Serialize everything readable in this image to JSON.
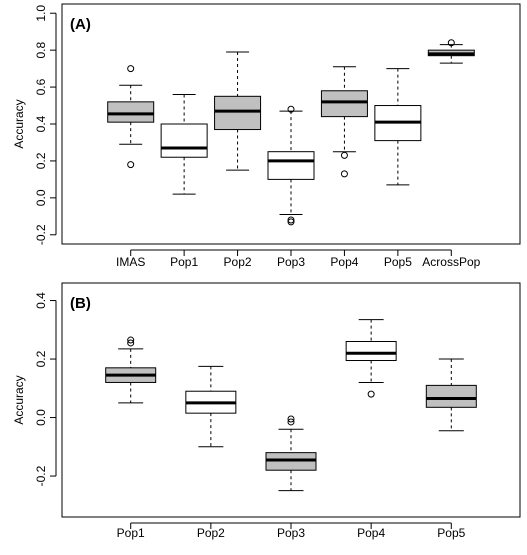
{
  "chart_data": [
    {
      "type": "boxplot",
      "panel_label": "(A)",
      "ylabel": "Accuracy",
      "ylim": [
        -0.25,
        1.05
      ],
      "yticks": [
        -0.2,
        0.0,
        0.2,
        0.4,
        0.6,
        0.8,
        1.0
      ],
      "ytick_labels": [
        "-0.2",
        "0.0",
        "0.2",
        "0.4",
        "0.6",
        "0.8",
        "1.0"
      ],
      "categories": [
        "IMAS",
        "Pop1",
        "Pop2",
        "Pop3",
        "Pop4",
        "Pop5",
        "AcrossPop"
      ],
      "boxes": [
        {
          "label": "IMAS",
          "whisker_low": 0.29,
          "q1": 0.41,
          "median": 0.455,
          "q3": 0.52,
          "whisker_high": 0.61,
          "outliers": [
            0.7,
            0.18
          ],
          "fill": "#c0c0c0"
        },
        {
          "label": "Pop1",
          "whisker_low": 0.02,
          "q1": 0.22,
          "median": 0.27,
          "q3": 0.4,
          "whisker_high": 0.56,
          "outliers": [],
          "fill": "#ffffff"
        },
        {
          "label": "Pop2",
          "whisker_low": 0.15,
          "q1": 0.37,
          "median": 0.47,
          "q3": 0.55,
          "whisker_high": 0.79,
          "outliers": [],
          "fill": "#c0c0c0"
        },
        {
          "label": "Pop3",
          "whisker_low": -0.09,
          "q1": 0.1,
          "median": 0.2,
          "q3": 0.25,
          "whisker_high": 0.47,
          "outliers": [
            0.48,
            -0.12,
            -0.13
          ],
          "fill": "#ffffff"
        },
        {
          "label": "Pop4",
          "whisker_low": 0.25,
          "q1": 0.44,
          "median": 0.52,
          "q3": 0.58,
          "whisker_high": 0.71,
          "outliers": [
            0.23,
            0.13
          ],
          "fill": "#c0c0c0"
        },
        {
          "label": "Pop5",
          "whisker_low": 0.07,
          "q1": 0.31,
          "median": 0.41,
          "q3": 0.5,
          "whisker_high": 0.7,
          "outliers": [],
          "fill": "#ffffff"
        },
        {
          "label": "AcrossPop",
          "whisker_low": 0.73,
          "q1": 0.77,
          "median": 0.78,
          "q3": 0.8,
          "whisker_high": 0.83,
          "outliers": [
            0.84
          ],
          "fill": "#c0c0c0"
        }
      ]
    },
    {
      "type": "boxplot",
      "panel_label": "(B)",
      "ylabel": "Accuracy",
      "ylim": [
        -0.34,
        0.46
      ],
      "yticks": [
        -0.2,
        0.0,
        0.2,
        0.4
      ],
      "ytick_labels": [
        "-0.2",
        "0.0",
        "0.2",
        "0.4"
      ],
      "categories": [
        "Pop1",
        "Pop2",
        "Pop3",
        "Pop4",
        "Pop5"
      ],
      "boxes": [
        {
          "label": "Pop1",
          "whisker_low": 0.05,
          "q1": 0.12,
          "median": 0.145,
          "q3": 0.17,
          "whisker_high": 0.235,
          "outliers": [
            0.255,
            0.265
          ],
          "fill": "#c0c0c0"
        },
        {
          "label": "Pop2",
          "whisker_low": -0.1,
          "q1": 0.015,
          "median": 0.05,
          "q3": 0.09,
          "whisker_high": 0.175,
          "outliers": [],
          "fill": "#ffffff"
        },
        {
          "label": "Pop3",
          "whisker_low": -0.25,
          "q1": -0.18,
          "median": -0.145,
          "q3": -0.12,
          "whisker_high": -0.04,
          "outliers": [
            -0.015,
            -0.005
          ],
          "fill": "#c0c0c0"
        },
        {
          "label": "Pop4",
          "whisker_low": 0.12,
          "q1": 0.195,
          "median": 0.22,
          "q3": 0.26,
          "whisker_high": 0.335,
          "outliers": [
            0.08
          ],
          "fill": "#ffffff"
        },
        {
          "label": "Pop5",
          "whisker_low": -0.045,
          "q1": 0.035,
          "median": 0.065,
          "q3": 0.11,
          "whisker_high": 0.2,
          "outliers": [],
          "fill": "#c0c0c0"
        }
      ]
    }
  ]
}
